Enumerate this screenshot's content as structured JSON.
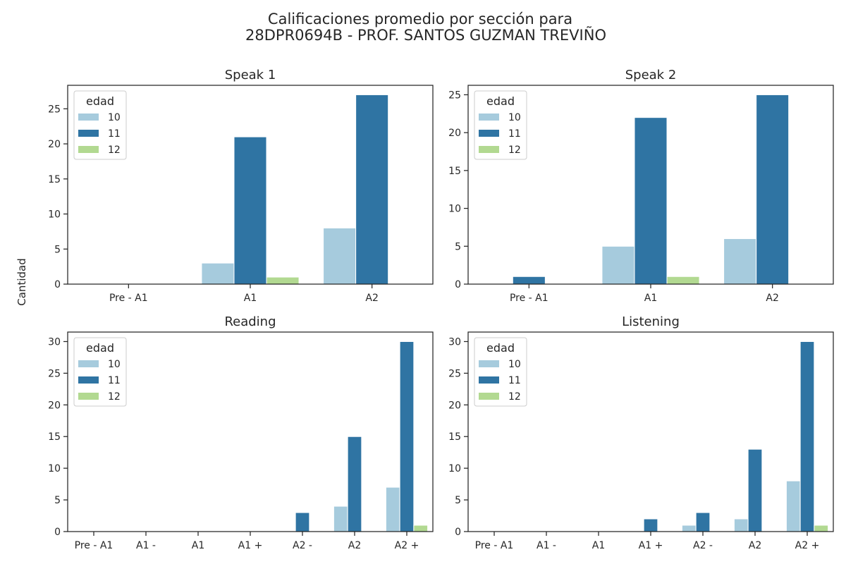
{
  "figure": {
    "title_line1": "Calificaciones promedio por sección para",
    "title_line2": "28DPR0694B - PROF. SANTOS GUZMAN TREVIÑO",
    "ylabel": "Cantidad"
  },
  "legend": {
    "title": "edad",
    "placement": "upper-left"
  },
  "colors": {
    "10": "#a6cbdd",
    "11": "#2f74a3",
    "12": "#b2d991"
  },
  "chart_data": [
    {
      "type": "bar",
      "title": "Speak 1",
      "categories": [
        "Pre - A1",
        "A1",
        "A2"
      ],
      "ylim": [
        0,
        28.35
      ],
      "yticks": [
        0,
        5,
        10,
        15,
        20,
        25
      ],
      "series": [
        {
          "name": "10",
          "values": [
            0,
            3,
            8
          ]
        },
        {
          "name": "11",
          "values": [
            0,
            21,
            27
          ]
        },
        {
          "name": "12",
          "values": [
            0,
            1,
            0
          ]
        }
      ]
    },
    {
      "type": "bar",
      "title": "Speak 2",
      "categories": [
        "Pre - A1",
        "A1",
        "A2"
      ],
      "ylim": [
        0,
        26.25
      ],
      "yticks": [
        0,
        5,
        10,
        15,
        20,
        25
      ],
      "series": [
        {
          "name": "10",
          "values": [
            0,
            5,
            6
          ]
        },
        {
          "name": "11",
          "values": [
            1,
            22,
            25
          ]
        },
        {
          "name": "12",
          "values": [
            0,
            1,
            0
          ]
        }
      ]
    },
    {
      "type": "bar",
      "title": "Reading",
      "categories": [
        "Pre - A1",
        "A1 -",
        "A1",
        "A1 +",
        "A2 -",
        "A2",
        "A2 +"
      ],
      "ylim": [
        0,
        31.5
      ],
      "yticks": [
        0,
        5,
        10,
        15,
        20,
        25,
        30
      ],
      "series": [
        {
          "name": "10",
          "values": [
            0,
            0,
            0,
            0,
            0,
            4,
            7
          ]
        },
        {
          "name": "11",
          "values": [
            0,
            0,
            0,
            0,
            3,
            15,
            30
          ]
        },
        {
          "name": "12",
          "values": [
            0,
            0,
            0,
            0,
            0,
            0,
            1
          ]
        }
      ]
    },
    {
      "type": "bar",
      "title": "Listening",
      "categories": [
        "Pre - A1",
        "A1 -",
        "A1",
        "A1 +",
        "A2 -",
        "A2",
        "A2 +"
      ],
      "ylim": [
        0,
        31.5
      ],
      "yticks": [
        0,
        5,
        10,
        15,
        20,
        25,
        30
      ],
      "series": [
        {
          "name": "10",
          "values": [
            0,
            0,
            0,
            0,
            1,
            2,
            8
          ]
        },
        {
          "name": "11",
          "values": [
            0,
            0,
            0,
            2,
            3,
            13,
            30
          ]
        },
        {
          "name": "12",
          "values": [
            0,
            0,
            0,
            0,
            0,
            0,
            1
          ]
        }
      ]
    }
  ]
}
